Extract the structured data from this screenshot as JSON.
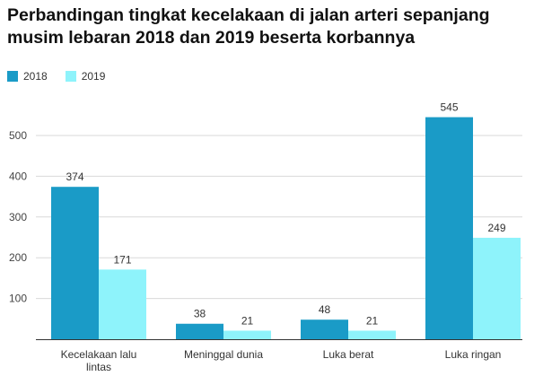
{
  "chart_data": {
    "type": "bar",
    "title": "Perbandingan tingkat kecelakaan di jalan arteri sepanjang musim lebaran 2018 dan 2019 beserta korbannya",
    "categories": [
      [
        "Kecelakaan lalu",
        "lintas"
      ],
      [
        "Meninggal dunia"
      ],
      [
        "Luka berat"
      ],
      [
        "Luka ringan"
      ]
    ],
    "series": [
      {
        "name": "2018",
        "color": "#1a9bc7",
        "values": [
          374,
          38,
          48,
          545
        ]
      },
      {
        "name": "2019",
        "color": "#8ef3fb",
        "values": [
          171,
          21,
          21,
          249
        ]
      }
    ],
    "yticks": [
      100,
      200,
      300,
      400,
      500
    ],
    "ylim": [
      0,
      600
    ],
    "grid": true,
    "legend_position": "top-left"
  }
}
